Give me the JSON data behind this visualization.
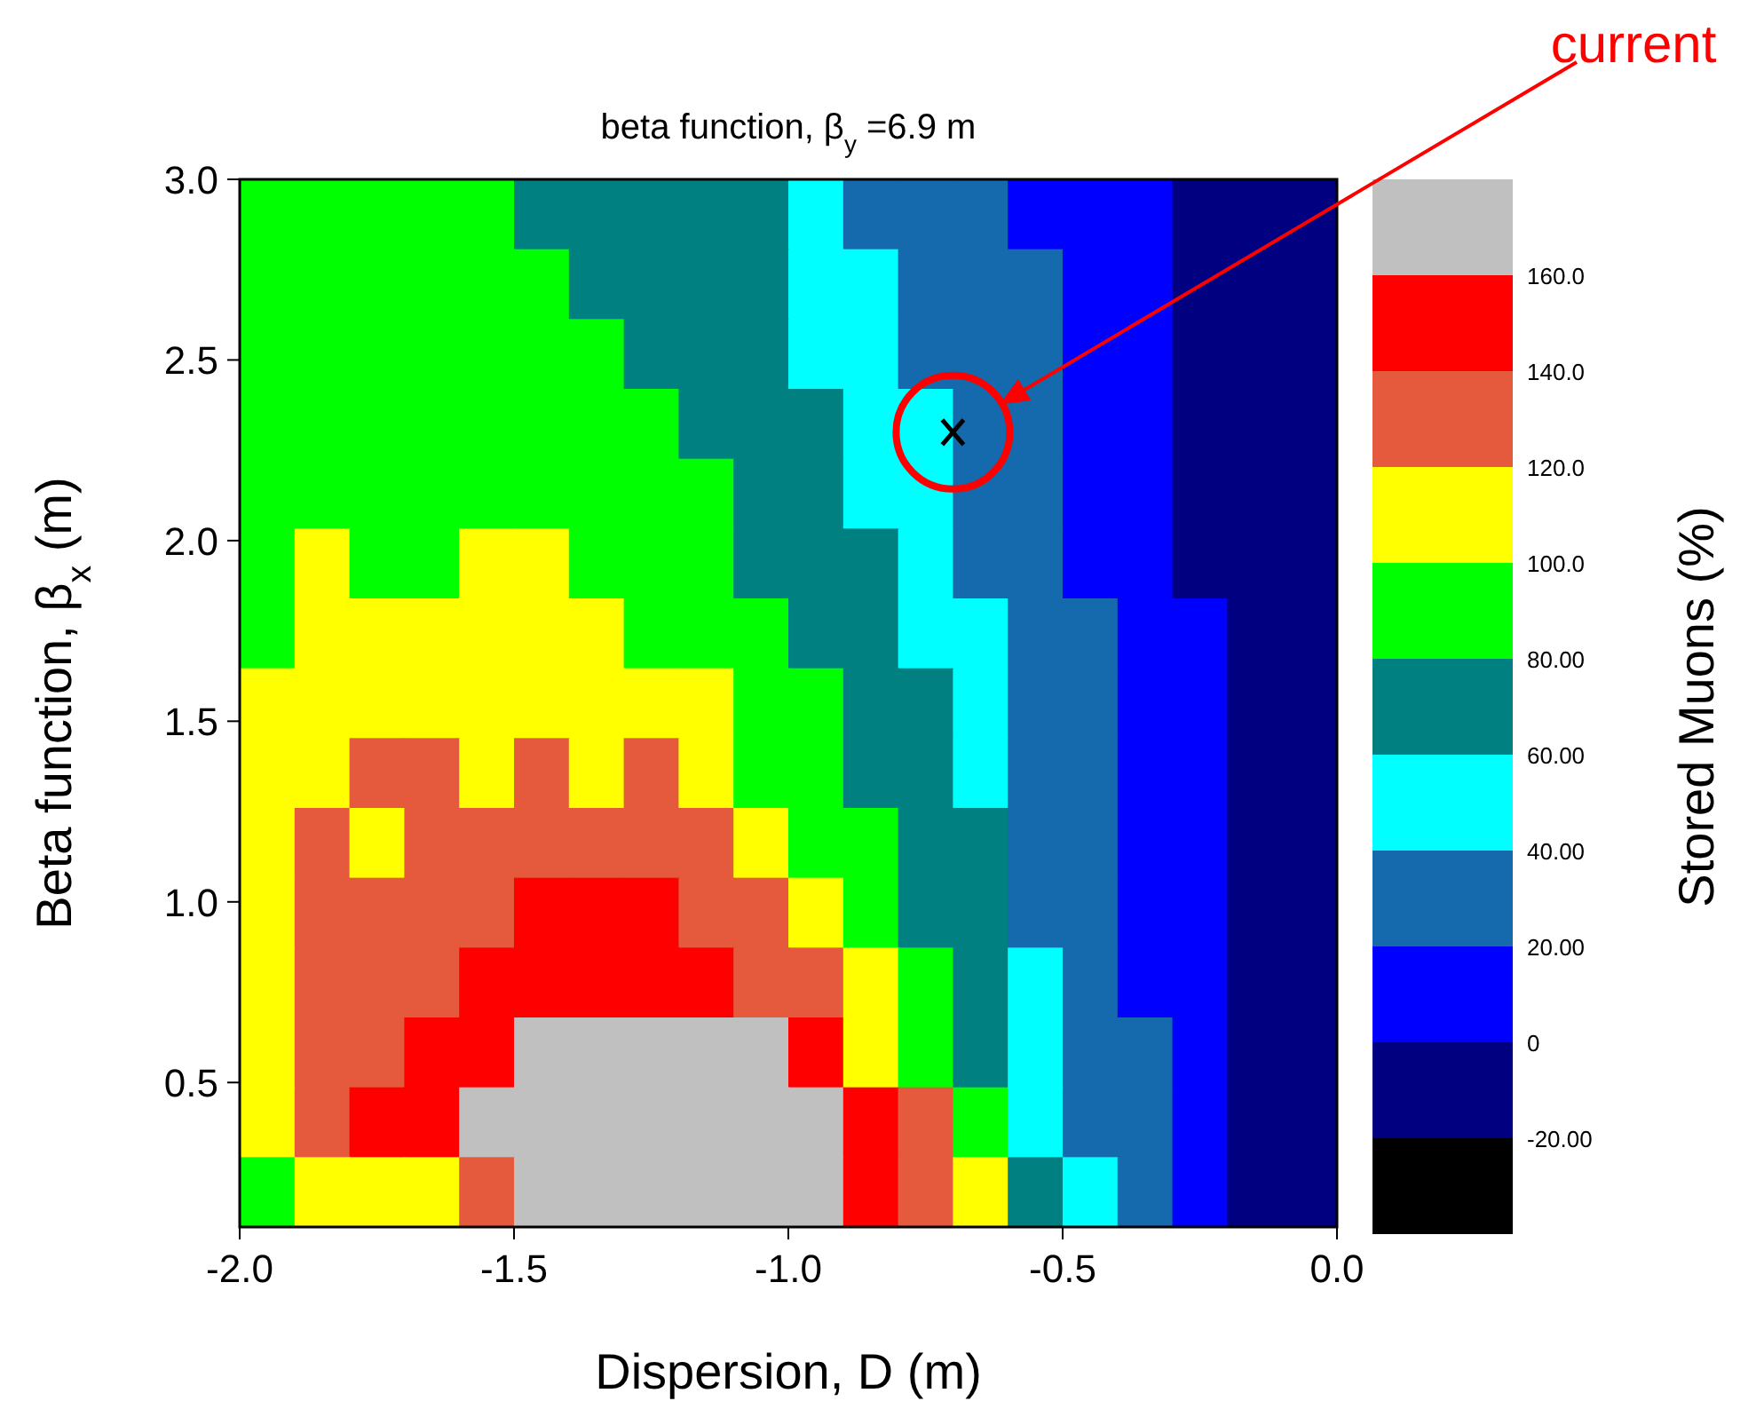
{
  "chart_data": {
    "type": "heatmap",
    "title": "beta function, β$_{y}$ =6.9 m",
    "xlabel": "Dispersion, D (m)",
    "ylabel": "Beta function, β$_{x}$ (m)",
    "clabel": "Stored Muons (%)",
    "xlim": [
      -2.0,
      0.0
    ],
    "xticks": [
      {
        "value": -2,
        "label": "-2.0"
      },
      {
        "value": -1.5,
        "label": "-1.5"
      },
      {
        "value": -1,
        "label": "-1.0"
      },
      {
        "value": -0.5,
        "label": "-0.5"
      },
      {
        "value": 0,
        "label": "0.0"
      }
    ],
    "ylim": [
      0.1,
      3.0
    ],
    "yticks": [
      {
        "value": 0.5,
        "label": "0.5"
      },
      {
        "value": 1,
        "label": "1.0"
      },
      {
        "value": 1.5,
        "label": "1.5"
      },
      {
        "value": 2,
        "label": "2.0"
      },
      {
        "value": 2.5,
        "label": "2.5"
      },
      {
        "value": 3,
        "label": "3.0"
      }
    ],
    "clim": [
      -40,
      180
    ],
    "cticks": [
      {
        "value": -20,
        "label": "-20.00"
      },
      {
        "value": 0,
        "label": "0"
      },
      {
        "value": 20,
        "label": "20.00"
      },
      {
        "value": 40,
        "label": "40.00"
      },
      {
        "value": 60,
        "label": "60.00"
      },
      {
        "value": 80,
        "label": "80.00"
      },
      {
        "value": 100,
        "label": "100.0"
      },
      {
        "value": 120,
        "label": "120.0"
      },
      {
        "value": 140,
        "label": "140.0"
      },
      {
        "value": 160,
        "label": "160.0"
      }
    ],
    "colors": [
      "#000000",
      "#000080",
      "#0000ff",
      "#1569ad",
      "#00ffff",
      "#008080",
      "#00ff00",
      "#ffff00",
      "#e55a3c",
      "#ff0000",
      "#c0c0c0"
    ],
    "cells": [
      [
        90,
        90,
        90,
        90,
        90,
        70,
        70,
        70,
        70,
        70,
        50,
        30,
        30,
        30,
        10,
        10,
        10,
        -10,
        -10,
        -10
      ],
      [
        90,
        90,
        90,
        90,
        90,
        90,
        70,
        70,
        70,
        70,
        50,
        50,
        30,
        30,
        30,
        10,
        10,
        -10,
        -10,
        -10
      ],
      [
        90,
        90,
        90,
        90,
        90,
        90,
        90,
        70,
        70,
        70,
        50,
        50,
        30,
        30,
        30,
        10,
        10,
        -10,
        -10,
        -10
      ],
      [
        90,
        90,
        90,
        90,
        90,
        90,
        90,
        90,
        70,
        70,
        70,
        50,
        50,
        30,
        30,
        10,
        10,
        -10,
        -10,
        -10
      ],
      [
        90,
        90,
        90,
        90,
        90,
        90,
        90,
        90,
        90,
        70,
        70,
        50,
        50,
        30,
        30,
        10,
        10,
        -10,
        -10,
        -10
      ],
      [
        90,
        110,
        90,
        90,
        110,
        110,
        90,
        90,
        90,
        70,
        70,
        70,
        50,
        30,
        30,
        10,
        10,
        -10,
        -10,
        -10
      ],
      [
        90,
        110,
        110,
        110,
        110,
        110,
        110,
        90,
        90,
        90,
        70,
        70,
        50,
        50,
        30,
        30,
        10,
        10,
        -10,
        -10
      ],
      [
        110,
        110,
        110,
        110,
        110,
        110,
        110,
        110,
        110,
        90,
        90,
        70,
        70,
        50,
        30,
        30,
        10,
        10,
        -10,
        -10
      ],
      [
        110,
        110,
        130,
        130,
        110,
        130,
        110,
        130,
        110,
        90,
        90,
        70,
        70,
        50,
        30,
        30,
        10,
        10,
        -10,
        -10
      ],
      [
        110,
        130,
        110,
        130,
        130,
        130,
        130,
        130,
        130,
        110,
        90,
        90,
        70,
        70,
        30,
        30,
        10,
        10,
        -10,
        -10
      ],
      [
        110,
        130,
        130,
        130,
        130,
        150,
        150,
        150,
        130,
        130,
        110,
        90,
        70,
        70,
        30,
        30,
        10,
        10,
        -10,
        -10
      ],
      [
        110,
        130,
        130,
        130,
        150,
        150,
        150,
        150,
        150,
        130,
        130,
        110,
        90,
        70,
        50,
        30,
        10,
        10,
        -10,
        -10
      ],
      [
        110,
        130,
        130,
        150,
        150,
        170,
        170,
        170,
        170,
        170,
        150,
        110,
        90,
        70,
        50,
        30,
        30,
        10,
        -10,
        -10
      ],
      [
        110,
        130,
        150,
        150,
        170,
        170,
        170,
        170,
        170,
        170,
        170,
        150,
        130,
        90,
        50,
        30,
        30,
        10,
        -10,
        -10
      ],
      [
        90,
        110,
        110,
        110,
        130,
        170,
        170,
        170,
        170,
        170,
        170,
        150,
        130,
        110,
        70,
        50,
        30,
        10,
        -10,
        -10
      ]
    ],
    "series": [
      {
        "type": "scatter",
        "x": [
          -0.7
        ],
        "values": [
          2.3
        ],
        "color": "#000000",
        "marker": "cross"
      }
    ],
    "annotations": [
      "current"
    ]
  }
}
